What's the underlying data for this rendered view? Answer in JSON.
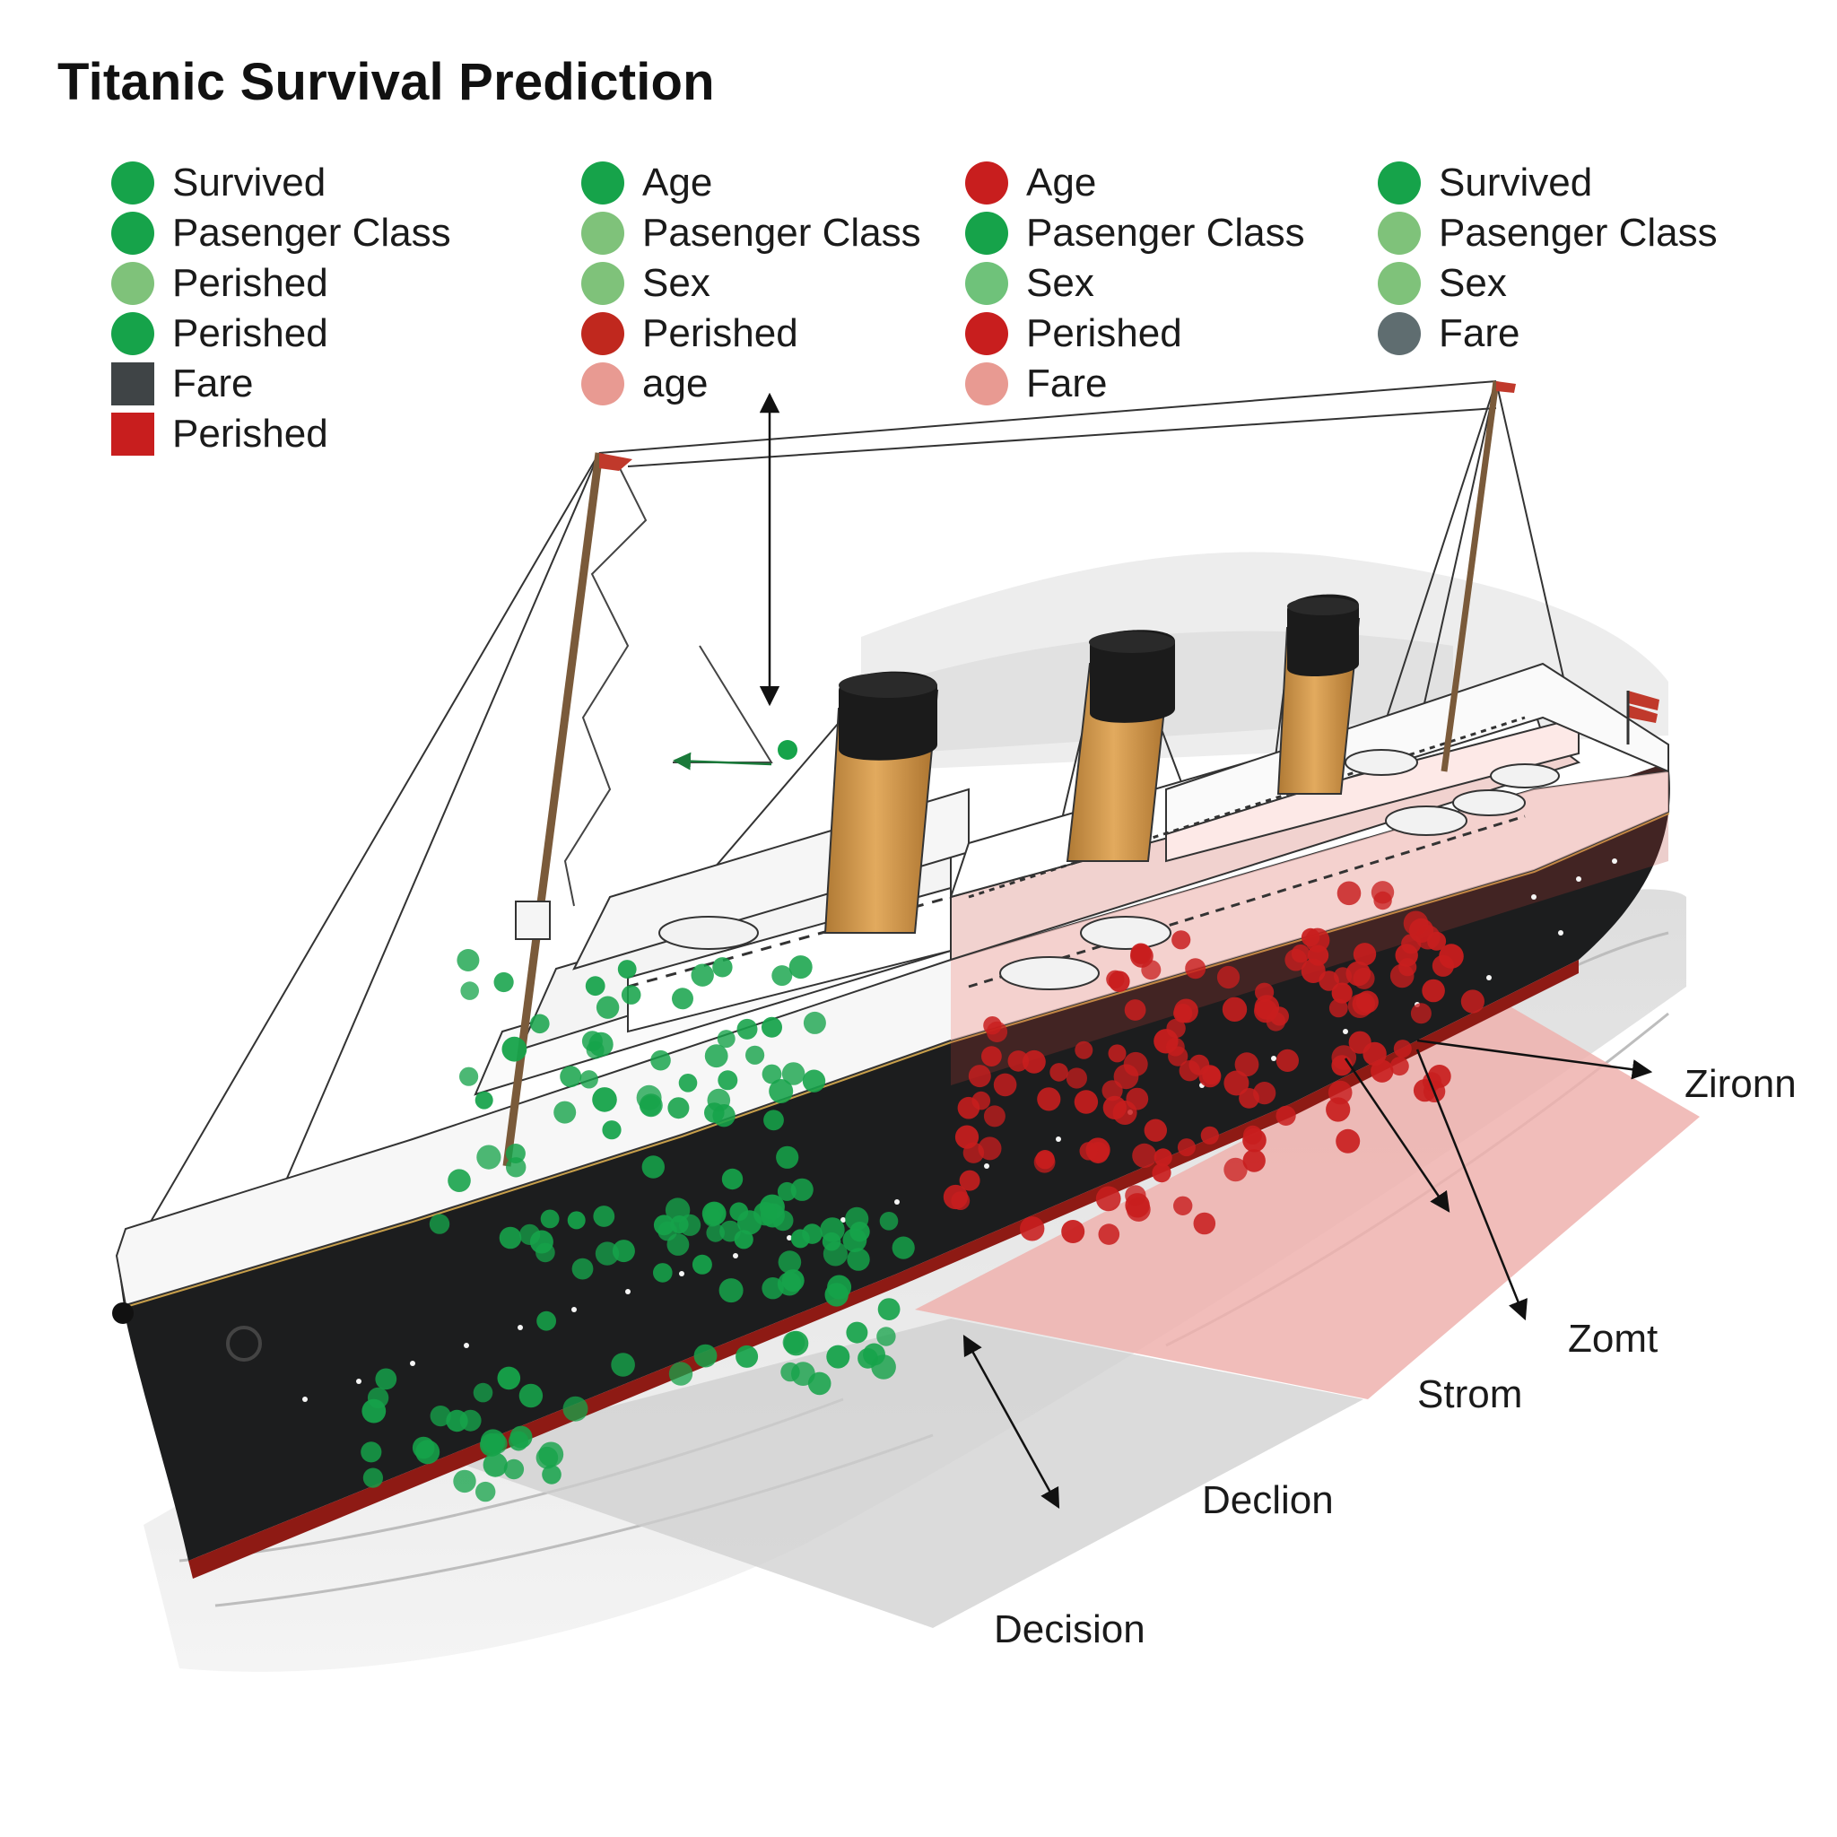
{
  "title": "Titanic Survival Prediction",
  "colors": {
    "survived_green": "#16a34a",
    "light_green": "#7fc27a",
    "perished_red": "#c81e1e",
    "pink": "#e89a92",
    "fare_dark": "#3f4446",
    "fare_slate": "#5f6d70",
    "hull_black": "#1c1d1e",
    "funnel_tan": "#d9a153",
    "red_zone": "#efb2ae",
    "grey_zone": "#d8d8d8"
  },
  "legend": [
    [
      {
        "label": "Survived",
        "shape": "circle",
        "color": "#16a34a"
      },
      {
        "label": "Pasenger Class",
        "shape": "circle",
        "color": "#16a34a"
      },
      {
        "label": "Perished",
        "shape": "circle",
        "color": "#7fc27a"
      },
      {
        "label": "Perished",
        "shape": "circle",
        "color": "#16a34a"
      },
      {
        "label": "Fare",
        "shape": "square",
        "color": "#3f4446"
      },
      {
        "label": "Perished",
        "shape": "square",
        "color": "#c81e1e"
      }
    ],
    [
      {
        "label": "Age",
        "shape": "circle",
        "color": "#16a34a"
      },
      {
        "label": "Pasenger Class",
        "shape": "circle",
        "color": "#7fc27a"
      },
      {
        "label": "Sex",
        "shape": "circle",
        "color": "#7fc27a"
      },
      {
        "label": "Perished",
        "shape": "circle",
        "color": "#c0281e"
      },
      {
        "label": "age",
        "shape": "circle",
        "color": "#e89a92"
      }
    ],
    [
      {
        "label": "Age",
        "shape": "circle",
        "color": "#c81e1e"
      },
      {
        "label": "Pasenger Class",
        "shape": "circle",
        "color": "#16a34a"
      },
      {
        "label": "Sex",
        "shape": "circle",
        "color": "#6fc27a"
      },
      {
        "label": "Perished",
        "shape": "circle",
        "color": "#c81e1e"
      },
      {
        "label": "Fare",
        "shape": "circle",
        "color": "#e89a92"
      }
    ],
    [
      {
        "label": "Survived",
        "shape": "circle",
        "color": "#16a34a"
      },
      {
        "label": "Pasenger Class",
        "shape": "circle",
        "color": "#7fc27a"
      },
      {
        "label": "Sex",
        "shape": "circle",
        "color": "#7fc27a"
      },
      {
        "label": "Fare",
        "shape": "circle",
        "color": "#5f6d70"
      }
    ]
  ],
  "callouts": {
    "zironn": "Zironn",
    "zomt": "Zomt",
    "strom": "Strom",
    "declion": "Declion",
    "decision": "Decision"
  }
}
